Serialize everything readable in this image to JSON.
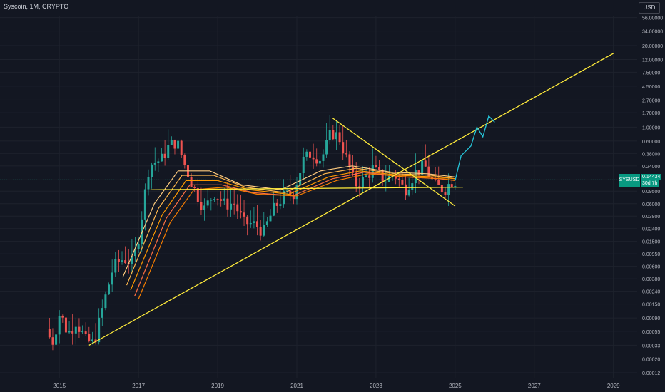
{
  "header": {
    "title": "Syscoin, 1M, CRYPTO"
  },
  "currency_button": {
    "label": "USD"
  },
  "symbol": {
    "ticker": "SYSUSD",
    "last_price": "0.14434",
    "countdown": "30d 7h"
  },
  "colors": {
    "background": "#131722",
    "up": "#26a69a",
    "down": "#ef5350",
    "trendline": "#ffeb3b",
    "projection": "#26c6da",
    "last_price": "#089981"
  },
  "chart_data": {
    "type": "candlestick",
    "title": "",
    "xlabel": "",
    "ylabel": "",
    "y_scale": "log",
    "ylim": [
      0.0001,
      60
    ],
    "x_range": [
      2013.5,
      2029.6
    ],
    "x_ticks": [
      "2015",
      "2017",
      "2019",
      "2021",
      "2023",
      "2025",
      "2027",
      "2029"
    ],
    "y_ticks": [
      "56.00000",
      "34.00000",
      "20.00000",
      "12.00000",
      "7.50000",
      "4.50000",
      "2.70000",
      "1.70000",
      "1.00000",
      "0.60000",
      "0.38000",
      "0.24000",
      "0.14434",
      "0.09500",
      "0.06000",
      "0.03800",
      "0.02400",
      "0.01500",
      "0.00950",
      "0.00600",
      "0.00380",
      "0.00240",
      "0.00150",
      "0.00090",
      "0.00055",
      "0.00033",
      "0.00020",
      "0.00012"
    ],
    "price_path": [
      [
        2014.75,
        0.0006
      ],
      [
        2014.9,
        0.00035
      ],
      [
        2015.1,
        0.0011
      ],
      [
        2015.3,
        0.0005
      ],
      [
        2015.5,
        0.0008
      ],
      [
        2015.75,
        0.0004
      ],
      [
        2015.95,
        0.00035
      ],
      [
        2016.2,
        0.0015
      ],
      [
        2016.45,
        0.006
      ],
      [
        2016.7,
        0.008
      ],
      [
        2016.95,
        0.007
      ],
      [
        2017.1,
        0.02
      ],
      [
        2017.35,
        0.25
      ],
      [
        2017.65,
        0.3
      ],
      [
        2017.85,
        0.5
      ],
      [
        2018.05,
        0.6
      ],
      [
        2018.25,
        0.25
      ],
      [
        2018.5,
        0.1
      ],
      [
        2018.75,
        0.05
      ],
      [
        2019.0,
        0.09
      ],
      [
        2019.25,
        0.06
      ],
      [
        2019.5,
        0.06
      ],
      [
        2019.75,
        0.03
      ],
      [
        2020.0,
        0.028
      ],
      [
        2020.25,
        0.022
      ],
      [
        2020.5,
        0.05
      ],
      [
        2020.75,
        0.08
      ],
      [
        2021.0,
        0.09
      ],
      [
        2021.25,
        0.3
      ],
      [
        2021.45,
        0.4
      ],
      [
        2021.7,
        0.3
      ],
      [
        2021.95,
        0.85
      ],
      [
        2022.15,
        0.7
      ],
      [
        2022.35,
        0.3
      ],
      [
        2022.55,
        0.12
      ],
      [
        2022.8,
        0.15
      ],
      [
        2023.0,
        0.22
      ],
      [
        2023.3,
        0.14
      ],
      [
        2023.55,
        0.18
      ],
      [
        2023.8,
        0.1
      ],
      [
        2024.05,
        0.18
      ],
      [
        2024.3,
        0.25
      ],
      [
        2024.55,
        0.12
      ],
      [
        2024.8,
        0.1
      ],
      [
        2025.0,
        0.14
      ]
    ],
    "moving_averages": [
      {
        "color": "#ffcc80",
        "points": [
          [
            2016.6,
            0.004
          ],
          [
            2017.4,
            0.06
          ],
          [
            2018.0,
            0.2
          ],
          [
            2018.8,
            0.2
          ],
          [
            2019.6,
            0.12
          ],
          [
            2020.6,
            0.1
          ],
          [
            2021.6,
            0.2
          ],
          [
            2022.4,
            0.24
          ],
          [
            2023.4,
            0.19
          ],
          [
            2024.3,
            0.18
          ],
          [
            2025.0,
            0.16
          ]
        ]
      },
      {
        "color": "#ffb74d",
        "points": [
          [
            2016.7,
            0.003
          ],
          [
            2017.5,
            0.05
          ],
          [
            2018.1,
            0.17
          ],
          [
            2018.9,
            0.17
          ],
          [
            2019.7,
            0.11
          ],
          [
            2020.7,
            0.09
          ],
          [
            2021.7,
            0.18
          ],
          [
            2022.5,
            0.22
          ],
          [
            2023.5,
            0.18
          ],
          [
            2024.4,
            0.17
          ],
          [
            2025.0,
            0.15
          ]
        ]
      },
      {
        "color": "#ff9800",
        "points": [
          [
            2016.8,
            0.0025
          ],
          [
            2017.6,
            0.04
          ],
          [
            2018.2,
            0.14
          ],
          [
            2019.0,
            0.14
          ],
          [
            2019.8,
            0.1
          ],
          [
            2020.8,
            0.085
          ],
          [
            2021.8,
            0.16
          ],
          [
            2022.6,
            0.2
          ],
          [
            2023.6,
            0.17
          ],
          [
            2024.5,
            0.16
          ],
          [
            2025.0,
            0.15
          ]
        ]
      },
      {
        "color": "#ff7043",
        "points": [
          [
            2016.9,
            0.002
          ],
          [
            2017.7,
            0.035
          ],
          [
            2018.3,
            0.12
          ],
          [
            2019.1,
            0.12
          ],
          [
            2019.9,
            0.09
          ],
          [
            2020.9,
            0.08
          ],
          [
            2021.9,
            0.15
          ],
          [
            2022.7,
            0.19
          ],
          [
            2023.7,
            0.16
          ],
          [
            2024.6,
            0.15
          ],
          [
            2025.0,
            0.14
          ]
        ]
      },
      {
        "color": "#f57c00",
        "points": [
          [
            2017.0,
            0.0018
          ],
          [
            2017.8,
            0.03
          ],
          [
            2018.4,
            0.1
          ],
          [
            2019.2,
            0.11
          ],
          [
            2020.0,
            0.085
          ],
          [
            2021.0,
            0.08
          ],
          [
            2022.0,
            0.14
          ],
          [
            2022.8,
            0.18
          ],
          [
            2023.8,
            0.16
          ],
          [
            2024.7,
            0.15
          ],
          [
            2025.0,
            0.14
          ]
        ]
      }
    ],
    "trendlines": [
      {
        "color": "#ffeb3b",
        "points": [
          [
            2015.75,
            0.00033
          ],
          [
            2029.0,
            15.0
          ]
        ]
      },
      {
        "color": "#ffeb3b",
        "points": [
          [
            2017.3,
            0.1
          ],
          [
            2025.2,
            0.11
          ]
        ]
      },
      {
        "color": "#ffeb3b",
        "points": [
          [
            2021.9,
            1.4
          ],
          [
            2025.0,
            0.055
          ]
        ]
      }
    ],
    "projection": {
      "color": "#26c6da",
      "points": [
        [
          2025.0,
          0.14
        ],
        [
          2025.15,
          0.35
        ],
        [
          2025.4,
          0.5
        ],
        [
          2025.55,
          1.0
        ],
        [
          2025.7,
          0.7
        ],
        [
          2025.85,
          1.5
        ],
        [
          2026.0,
          1.2
        ]
      ]
    }
  }
}
